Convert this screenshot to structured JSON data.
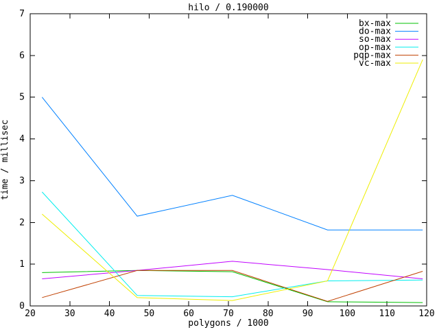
{
  "chart_data": {
    "type": "line",
    "title": "hilo / 0.190000",
    "xlabel": "polygons / 1000",
    "ylabel": "time / millisec",
    "xlim": [
      20,
      120
    ],
    "ylim": [
      0,
      7
    ],
    "xticks": [
      20,
      30,
      40,
      50,
      60,
      70,
      80,
      90,
      100,
      110,
      120
    ],
    "yticks": [
      0,
      1,
      2,
      3,
      4,
      5,
      6,
      7
    ],
    "grid": false,
    "legend_position": "top-right",
    "x": [
      23,
      47,
      71,
      95,
      119
    ],
    "series": [
      {
        "name": "bx-max",
        "color": "#00c000",
        "values": [
          0.8,
          0.85,
          0.82,
          0.1,
          0.08
        ]
      },
      {
        "name": "do-max",
        "color": "#0080ff",
        "values": [
          5.0,
          2.15,
          2.65,
          1.82,
          1.82
        ]
      },
      {
        "name": "so-max",
        "color": "#c000ff",
        "values": [
          0.65,
          0.85,
          1.07,
          0.87,
          0.65
        ]
      },
      {
        "name": "op-max",
        "color": "#00eeee",
        "values": [
          2.73,
          0.25,
          0.22,
          0.6,
          0.62
        ]
      },
      {
        "name": "pqp-max",
        "color": "#c04000",
        "values": [
          0.2,
          0.85,
          0.85,
          0.11,
          0.83
        ]
      },
      {
        "name": "vc-max",
        "color": "#eeee00",
        "values": [
          2.2,
          0.2,
          0.13,
          0.6,
          5.9
        ]
      }
    ]
  },
  "colors": {
    "background": "#ffffff",
    "axis": "#000000",
    "text": "#000000"
  }
}
